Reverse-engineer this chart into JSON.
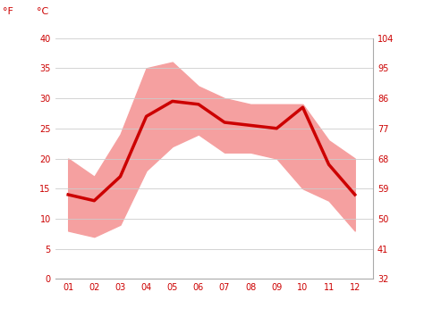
{
  "months": [
    1,
    2,
    3,
    4,
    5,
    6,
    7,
    8,
    9,
    10,
    11,
    12
  ],
  "month_labels": [
    "01",
    "02",
    "03",
    "04",
    "05",
    "06",
    "07",
    "08",
    "09",
    "10",
    "11",
    "12"
  ],
  "avg_temp_c": [
    14,
    13,
    17,
    27,
    29.5,
    29,
    26,
    25.5,
    25,
    28.5,
    19,
    14
  ],
  "max_temp_c": [
    20,
    17,
    24,
    35,
    36,
    32,
    30,
    29,
    29,
    29,
    23,
    20
  ],
  "min_temp_c": [
    8,
    7,
    9,
    18,
    22,
    24,
    21,
    21,
    20,
    15,
    13,
    8
  ],
  "line_color": "#cc0000",
  "band_color": "#f5a0a0",
  "bg_color": "#ffffff",
  "grid_color": "#cccccc",
  "label_color": "#cc0000",
  "ylim_c": [
    0,
    40
  ],
  "yticks_c": [
    0,
    5,
    10,
    15,
    20,
    25,
    30,
    35,
    40
  ],
  "yticks_f": [
    32,
    41,
    50,
    59,
    68,
    77,
    86,
    95,
    104
  ],
  "line_width": 2.5,
  "figsize": [
    4.74,
    3.55
  ],
  "dpi": 100
}
